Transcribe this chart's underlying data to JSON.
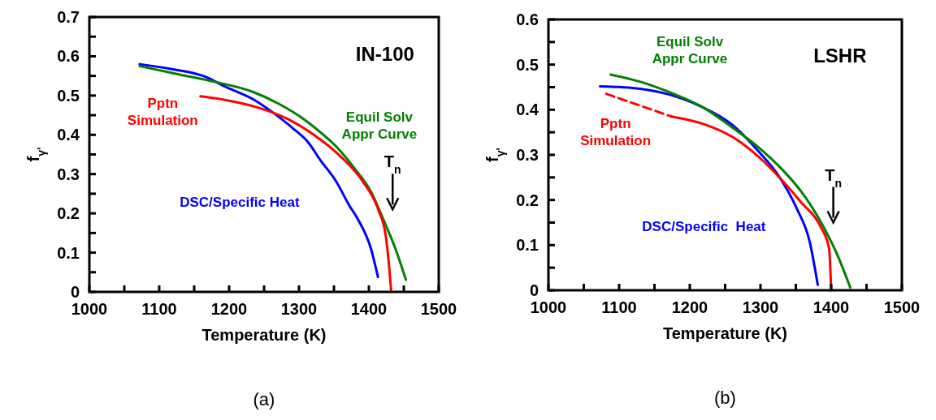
{
  "chart_data": [
    {
      "type": "line",
      "title": "(a)",
      "xlabel": "Temperature (K)",
      "ylabel": "f$_{γ'}$",
      "xlim": [
        1000,
        1500
      ],
      "ylim": [
        0,
        0.7
      ],
      "xticks": [
        1000,
        {
          "value": 1050,
          "label": null
        },
        1100,
        {
          "value": 1150,
          "label": null
        },
        1200,
        {
          "value": 1250,
          "label": null
        },
        1300,
        {
          "value": 1350,
          "label": null
        },
        1400,
        {
          "value": 1450,
          "label": null
        },
        1500
      ],
      "yticks": [
        0,
        {
          "value": 0.05,
          "label": null
        },
        0.1,
        {
          "value": 0.15,
          "label": null
        },
        0.2,
        {
          "value": 0.25,
          "label": null
        },
        0.3,
        {
          "value": 0.35,
          "label": null
        },
        0.4,
        {
          "value": 0.45,
          "label": null
        },
        0.5,
        {
          "value": 0.55,
          "label": null
        },
        0.6,
        {
          "value": 0.65,
          "label": null
        },
        0.7
      ],
      "grid": false,
      "marker": "none",
      "annotations": [
        "IN-100",
        "T$_{n}$"
      ],
      "series": [
        {
          "name": "DSC/Specific Heat",
          "color": "#0000ff",
          "line_style": "solid",
          "x": [
            1072,
            1116,
            1166,
            1194,
            1236,
            1264,
            1291,
            1314,
            1330,
            1353,
            1372,
            1384,
            1403,
            1413
          ],
          "values": [
            0.58,
            0.568,
            0.548,
            0.523,
            0.489,
            0.455,
            0.417,
            0.379,
            0.337,
            0.282,
            0.22,
            0.186,
            0.11,
            0.038
          ]
        },
        {
          "name": "Equil Solv Appr Curve",
          "color": "#008000",
          "line_style": "solid",
          "x": [
            1072,
            1128,
            1182,
            1233,
            1271,
            1306,
            1333,
            1356,
            1380,
            1403,
            1422,
            1438,
            1453
          ],
          "values": [
            0.575,
            0.554,
            0.534,
            0.51,
            0.479,
            0.441,
            0.403,
            0.365,
            0.313,
            0.255,
            0.179,
            0.11,
            0.031
          ]
        },
        {
          "name": "Pptn Simulation",
          "color": "#ff0000",
          "line_style": "solid",
          "x": [
            1159,
            1194,
            1244,
            1283,
            1322,
            1360,
            1391,
            1414,
            1424,
            1428,
            1432
          ],
          "values": [
            0.498,
            0.489,
            0.468,
            0.441,
            0.399,
            0.344,
            0.282,
            0.207,
            0.145,
            0.083,
            0
          ]
        }
      ]
    },
    {
      "type": "line",
      "title": "(b)",
      "xlabel": "Temperature (K)",
      "ylabel": "f$_{γ'}$",
      "xlim": [
        1000,
        1500
      ],
      "ylim": [
        0,
        0.6
      ],
      "xticks": [
        1000,
        {
          "value": 1050,
          "label": null
        },
        1100,
        {
          "value": 1150,
          "label": null
        },
        1200,
        {
          "value": 1250,
          "label": null
        },
        1300,
        {
          "value": 1350,
          "label": null
        },
        1400,
        {
          "value": 1450,
          "label": null
        },
        1500
      ],
      "yticks": [
        0,
        {
          "value": 0.05,
          "label": null
        },
        0.1,
        {
          "value": 0.15,
          "label": null
        },
        0.2,
        {
          "value": 0.25,
          "label": null
        },
        0.3,
        {
          "value": 0.35,
          "label": null
        },
        0.4,
        {
          "value": 0.45,
          "label": null
        },
        0.5,
        {
          "value": 0.55,
          "label": null
        },
        0.6
      ],
      "grid": false,
      "marker": "none",
      "annotations": [
        "LSHR",
        "T$_{n}$"
      ],
      "series": [
        {
          "name": "DSC/Specific  Heat",
          "color": "#0000ff",
          "line_style": "solid",
          "x": [
            1073,
            1113,
            1170,
            1216,
            1259,
            1297,
            1328,
            1351,
            1370,
            1381
          ],
          "values": [
            0.452,
            0.449,
            0.434,
            0.407,
            0.368,
            0.308,
            0.248,
            0.182,
            0.105,
            0.012
          ]
        },
        {
          "name": "Equil Solv Appr Curve",
          "color": "#008000",
          "line_style": "solid",
          "x": [
            1088,
            1132,
            1174,
            1220,
            1259,
            1297,
            1328,
            1358,
            1389,
            1408,
            1427
          ],
          "values": [
            0.478,
            0.461,
            0.437,
            0.404,
            0.362,
            0.317,
            0.272,
            0.218,
            0.141,
            0.081,
            0.006
          ]
        },
        {
          "name": "Pptn Simulation",
          "color": "#ff0000",
          "line_style": "solid",
          "x": [
            1174,
            1220,
            1262,
            1297,
            1328,
            1358,
            1385,
            1397,
            1400
          ],
          "values": [
            0.385,
            0.368,
            0.338,
            0.296,
            0.248,
            0.194,
            0.141,
            0.093,
            0
          ]
        },
        {
          "color": "#ff0000",
          "line_style": "dashed",
          "x": [
            1082,
            1174
          ],
          "values": [
            0.435,
            0.385
          ]
        }
      ]
    }
  ]
}
